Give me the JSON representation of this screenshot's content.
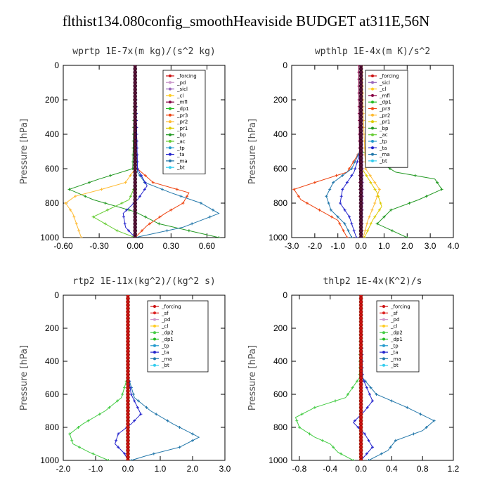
{
  "title": "flthist134.080config_smoothHeaviside  BUDGET at311E,56N",
  "colors": {
    "forcing": "#cc1111",
    "sf": "#dd2222",
    "pd": "#cc99cc",
    "sicl": "#9966bb",
    "cl": "#ffcc22",
    "mfl": "#880044",
    "dp1": "#22bb22",
    "dp2": "#44cc44",
    "pr1": "#ddcc00",
    "pr2": "#ffbb33",
    "pr3": "#ee4411",
    "bp": "#229922",
    "ac": "#66cc33",
    "tp": "#2299cc",
    "ta": "#2222cc",
    "ma": "#2277aa",
    "bt": "#33ccee"
  },
  "chart_data": [
    {
      "type": "line",
      "title": "wprtp   1E-7x(m kg)/(s^2 kg)",
      "ylabel": "Pressure [hPa]",
      "xlim": [
        -0.6,
        0.75
      ],
      "ylim": [
        1000,
        0
      ],
      "xticks": [
        "-0.60",
        "-0.30",
        "0.00",
        "0.30",
        "0.60"
      ],
      "xtick_values": [
        -0.6,
        -0.3,
        0.0,
        0.3,
        0.6
      ],
      "yticks": [
        "0",
        "200",
        "400",
        "600",
        "800",
        "1000"
      ],
      "legend": [
        "_forcing",
        "_pd",
        "_sicl",
        "_cl",
        "_mfl",
        "_dp1",
        "_pr3",
        "_pr2",
        "_pr1",
        "_bp",
        "_ac",
        "_tp",
        "_ta",
        "_ma",
        "_bt"
      ],
      "series": [
        {
          "name": "_pr2",
          "key": "pr2",
          "x": [
            0,
            0,
            -0.08,
            -0.28,
            -0.5,
            -0.58,
            -0.52,
            -0.45
          ],
          "y": [
            0,
            600,
            680,
            720,
            760,
            800,
            860,
            1000
          ]
        },
        {
          "name": "_bp",
          "key": "bp",
          "x": [
            0,
            -0.02,
            -0.3,
            -0.55,
            -0.35,
            0,
            0.2,
            0.7
          ],
          "y": [
            0,
            600,
            660,
            720,
            780,
            850,
            920,
            1000
          ]
        },
        {
          "name": "_pr3",
          "key": "pr3",
          "x": [
            0,
            0.02,
            0.15,
            0.45,
            0.4,
            0.25,
            0.1,
            0
          ],
          "y": [
            0,
            600,
            680,
            740,
            800,
            860,
            930,
            1000
          ]
        },
        {
          "name": "_ma",
          "key": "ma",
          "x": [
            0,
            0.02,
            0.08,
            0.3,
            0.55,
            0.7,
            0.4,
            0
          ],
          "y": [
            0,
            620,
            680,
            740,
            800,
            860,
            940,
            1000
          ]
        },
        {
          "name": "_ta",
          "key": "ta",
          "x": [
            0,
            0.02,
            0.1,
            0.02,
            -0.1,
            -0.08,
            0
          ],
          "y": [
            0,
            600,
            700,
            780,
            860,
            940,
            1000
          ]
        },
        {
          "name": "_ac",
          "key": "ac",
          "x": [
            0,
            0,
            -0.05,
            -0.35,
            -0.15,
            0
          ],
          "y": [
            0,
            700,
            780,
            880,
            960,
            1000
          ]
        },
        {
          "name": "_mfl",
          "key": "mfl",
          "x": [
            0,
            0,
            0
          ],
          "y": [
            0,
            500,
            1000
          ]
        }
      ]
    },
    {
      "type": "line",
      "title": "wpthlp   1E-4x(m K)/s^2",
      "ylabel": "Pressure [hPa]",
      "xlim": [
        -3.0,
        4.0
      ],
      "ylim": [
        1000,
        0
      ],
      "xticks": [
        "-3.0",
        "-2.0",
        "-1.0",
        "0.0",
        "1.0",
        "2.0",
        "3.0",
        "4.0"
      ],
      "xtick_values": [
        -3,
        -2,
        -1,
        0,
        1,
        2,
        3,
        4
      ],
      "yticks": [
        "0",
        "200",
        "400",
        "600",
        "800",
        "1000"
      ],
      "legend": [
        "_forcing",
        "_sicl",
        "_cl",
        "_mfl",
        "_dp1",
        "_pr3",
        "_pr2",
        "_pr1",
        "_bp",
        "_ac",
        "_tp",
        "_ta",
        "_ma",
        "_bt"
      ],
      "series": [
        {
          "name": "_pr3",
          "key": "pr3",
          "x": [
            0,
            -0.05,
            -0.6,
            -2.0,
            -2.9,
            -2.6,
            -1.8,
            -1.0,
            -0.6
          ],
          "y": [
            0,
            500,
            620,
            680,
            720,
            780,
            840,
            900,
            1000
          ]
        },
        {
          "name": "_bp",
          "key": "bp",
          "x": [
            0,
            0.05,
            1.5,
            3.2,
            3.5,
            2.5,
            1.3,
            0.7,
            2.0
          ],
          "y": [
            0,
            500,
            620,
            660,
            720,
            780,
            840,
            920,
            1000
          ]
        },
        {
          "name": "_ma",
          "key": "ma",
          "x": [
            0,
            -0.05,
            -0.4,
            -1.2,
            -1.5,
            -1.3,
            -0.7,
            -0.4
          ],
          "y": [
            0,
            500,
            600,
            680,
            760,
            840,
            920,
            1000
          ]
        },
        {
          "name": "_ta",
          "key": "ta",
          "x": [
            0,
            -0.02,
            -0.3,
            -0.8,
            -0.9,
            -0.5,
            -0.2
          ],
          "y": [
            0,
            500,
            620,
            720,
            800,
            880,
            1000
          ]
        },
        {
          "name": "_pr2",
          "key": "pr2",
          "x": [
            0.05,
            0.1,
            0.2,
            0.8,
            0.6,
            0.3,
            0.1
          ],
          "y": [
            0,
            300,
            600,
            720,
            800,
            900,
            1000
          ]
        },
        {
          "name": "_pr1",
          "key": "pr1",
          "x": [
            0,
            0.05,
            0.7,
            0.9,
            0.5,
            0.15
          ],
          "y": [
            0,
            600,
            740,
            820,
            900,
            1000
          ]
        },
        {
          "name": "_mfl",
          "key": "mfl",
          "x": [
            -0.1,
            -0.08,
            -0.05,
            0
          ],
          "y": [
            0,
            300,
            700,
            1000
          ]
        },
        {
          "name": "_sicl",
          "key": "sicl",
          "x": [
            0.02,
            0.04,
            0.08,
            0.05
          ],
          "y": [
            0,
            300,
            700,
            1000
          ]
        }
      ]
    },
    {
      "type": "line",
      "title": "rtp2   1E-11x(kg^2)/(kg^2 s)",
      "ylabel": "Pressure [hPa]",
      "xlim": [
        -2.0,
        3.0
      ],
      "ylim": [
        1000,
        0
      ],
      "xticks": [
        "-2.0",
        "-1.0",
        "0.0",
        "1.0",
        "2.0",
        "3.0"
      ],
      "xtick_values": [
        -2,
        -1,
        0,
        1,
        2,
        3
      ],
      "yticks": [
        "0",
        "200",
        "400",
        "600",
        "800",
        "1000"
      ],
      "legend": [
        "_forcing",
        "_sf",
        "_pd",
        "_cl",
        "_dp2",
        "_dp1",
        "_tp",
        "_ta",
        "_ma",
        "_bt"
      ],
      "series": [
        {
          "name": "_dp1",
          "key": "dp2",
          "x": [
            0,
            -0.02,
            -0.2,
            -0.7,
            -1.4,
            -1.8,
            -1.7,
            -1.2,
            -0.6
          ],
          "y": [
            0,
            500,
            620,
            700,
            780,
            840,
            900,
            950,
            1000
          ]
        },
        {
          "name": "_ma",
          "key": "ma",
          "x": [
            0,
            0.02,
            0.2,
            0.7,
            1.4,
            2.2,
            1.6,
            0.6,
            0.1
          ],
          "y": [
            0,
            500,
            620,
            700,
            780,
            860,
            920,
            970,
            1000
          ]
        },
        {
          "name": "_ta",
          "key": "ta",
          "x": [
            0,
            0.02,
            0.1,
            0.4,
            0.1,
            -0.3,
            -0.4,
            -0.1,
            0
          ],
          "y": [
            0,
            500,
            600,
            720,
            780,
            840,
            900,
            960,
            1000
          ]
        },
        {
          "name": "_forcing",
          "key": "forcing",
          "x": [
            0,
            0,
            0
          ],
          "y": [
            0,
            500,
            1000
          ]
        }
      ]
    },
    {
      "type": "line",
      "title": "thlp2   1E-4x(K^2)/s",
      "ylabel": "Pressure [hPa]",
      "xlim": [
        -0.9,
        1.2
      ],
      "ylim": [
        1000,
        0
      ],
      "xticks": [
        "-0.8",
        "-0.4",
        "0.0",
        "0.4",
        "0.8",
        "1.2"
      ],
      "xtick_values": [
        -0.8,
        -0.4,
        0.0,
        0.4,
        0.8,
        1.2
      ],
      "yticks": [
        "0",
        "200",
        "400",
        "600",
        "800",
        "1000"
      ],
      "legend": [
        "_forcing",
        "_sf",
        "_pd",
        "_cl",
        "_dp2",
        "_dp1",
        "_tp",
        "_ta",
        "_ma",
        "_bt"
      ],
      "series": [
        {
          "name": "_dp1",
          "key": "dp2",
          "x": [
            0,
            -0.02,
            -0.2,
            -0.6,
            -0.85,
            -0.8,
            -0.6,
            -0.4,
            -0.3,
            -0.1
          ],
          "y": [
            0,
            500,
            620,
            680,
            740,
            800,
            860,
            900,
            950,
            1000
          ]
        },
        {
          "name": "_ma",
          "key": "ma",
          "x": [
            0,
            0.02,
            0.2,
            0.6,
            0.95,
            0.8,
            0.45,
            0.35,
            0.1
          ],
          "y": [
            0,
            500,
            600,
            680,
            760,
            820,
            880,
            940,
            1000
          ]
        },
        {
          "name": "_ta",
          "key": "ta",
          "x": [
            0,
            0.02,
            0.15,
            0.05,
            -0.1,
            0.05,
            0.15,
            0
          ],
          "y": [
            0,
            500,
            640,
            700,
            770,
            840,
            920,
            1000
          ]
        },
        {
          "name": "_forcing",
          "key": "forcing",
          "x": [
            0,
            0,
            0
          ],
          "y": [
            0,
            500,
            1000
          ]
        }
      ]
    }
  ]
}
